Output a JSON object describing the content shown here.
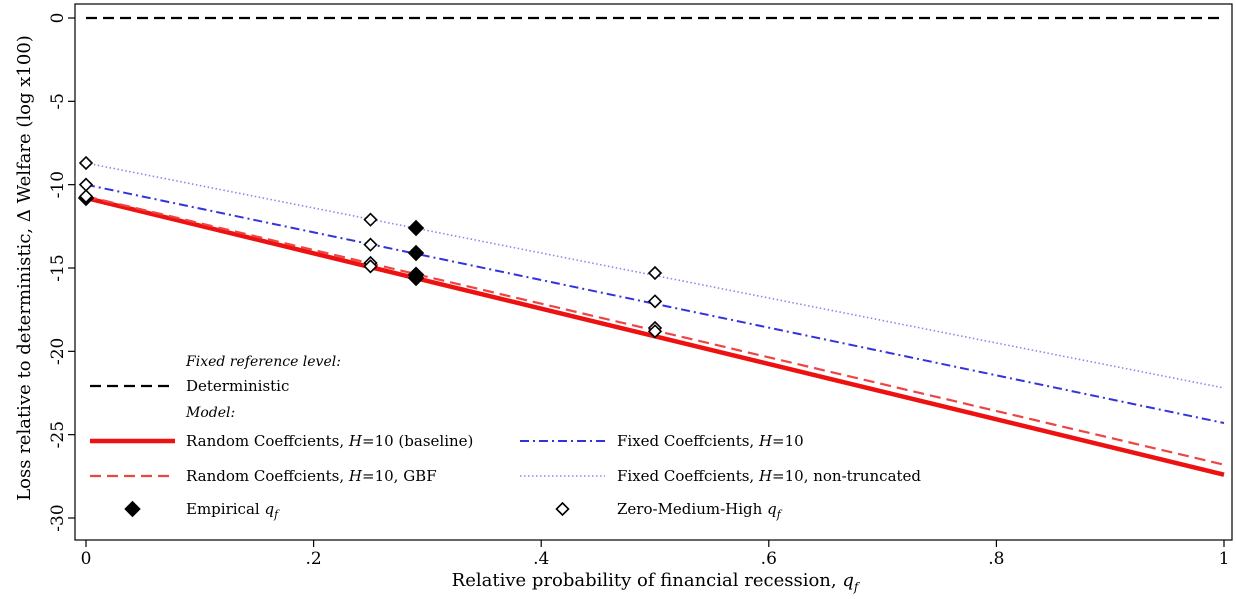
{
  "chart_data": {
    "type": "line",
    "title": "",
    "xlabel": "Relative probability of financial recession, ",
    "xlabel_var": "q",
    "xlabel_sub": "f",
    "ylabel": "Loss relative to deterministic, Δ Welfare (log x100)",
    "xlim": [
      0,
      1
    ],
    "ylim": [
      -30,
      0
    ],
    "xticks": [
      {
        "value": 0,
        "label": "0"
      },
      {
        "value": 0.2,
        "label": ".2"
      },
      {
        "value": 0.4,
        "label": ".4"
      },
      {
        "value": 0.6,
        "label": ".6"
      },
      {
        "value": 0.8,
        "label": ".8"
      },
      {
        "value": 1,
        "label": "1"
      }
    ],
    "yticks": [
      {
        "value": 0,
        "label": "0"
      },
      {
        "value": -5,
        "label": "-5"
      },
      {
        "value": -10,
        "label": "-10"
      },
      {
        "value": -15,
        "label": "-15"
      },
      {
        "value": -20,
        "label": "-20"
      },
      {
        "value": -25,
        "label": "-25"
      },
      {
        "value": -30,
        "label": "-30"
      }
    ],
    "grid": false,
    "series": [
      {
        "key": "det",
        "name": "Deterministic",
        "color": "#000000",
        "style": "dash-black",
        "x": [
          0,
          1
        ],
        "y": [
          0,
          0
        ]
      },
      {
        "key": "rc",
        "name": "Random Coeffcients, H=10 (baseline)",
        "color": "#ee1111",
        "style": "solid-thick",
        "x": [
          0,
          1
        ],
        "y": [
          -10.8,
          -27.4
        ]
      },
      {
        "key": "rcgbf",
        "name": "Random Coeffcients, H=10, GBF",
        "color": "#ee4444",
        "style": "dash-red",
        "x": [
          0,
          1
        ],
        "y": [
          -10.7,
          -26.8
        ]
      },
      {
        "key": "fc",
        "name": "Fixed Coeffcients, H=10",
        "color": "#3333dd",
        "style": "dashdot-blue",
        "x": [
          0,
          1
        ],
        "y": [
          -10.0,
          -24.3
        ]
      },
      {
        "key": "fcnt",
        "name": "Fixed Coeffcients, H=10, non-truncated",
        "color": "#8888ee",
        "style": "dot-blue",
        "x": [
          0,
          1
        ],
        "y": [
          -8.7,
          -22.2
        ]
      }
    ],
    "markers": [
      {
        "name": "Empirical q_f",
        "filled": true,
        "points": [
          [
            0.29,
            -12.6
          ],
          [
            0.29,
            -14.1
          ],
          [
            0.29,
            -15.4
          ],
          [
            0.29,
            -15.6
          ],
          [
            0.0,
            -10.8
          ]
        ]
      },
      {
        "name": "Zero-Medium-High q_f",
        "filled": false,
        "points": [
          [
            0,
            -8.7
          ],
          [
            0,
            -10.0
          ],
          [
            0,
            -10.7
          ],
          [
            0.25,
            -12.1
          ],
          [
            0.25,
            -13.6
          ],
          [
            0.25,
            -14.7
          ],
          [
            0.25,
            -14.9
          ],
          [
            0.5,
            -15.3
          ],
          [
            0.5,
            -17.0
          ],
          [
            0.5,
            -18.6
          ],
          [
            0.5,
            -18.8
          ]
        ]
      }
    ],
    "legend": {
      "placement": "bottom-left",
      "heading_fixed": "Fixed reference level:",
      "heading_model": "Model:",
      "items": [
        {
          "label": "Deterministic",
          "style": "dash-black"
        },
        {
          "label_pre": "Random Coeffcients, ",
          "label_var": "H",
          "label_post": "=10 (baseline)",
          "style": "solid-thick"
        },
        {
          "label_pre": "Fixed Coeffcients, ",
          "label_var": "H",
          "label_post": "=10",
          "style": "dashdot-blue"
        },
        {
          "label_pre": "Random Coeffcients, ",
          "label_var": "H",
          "label_post": "=10, GBF",
          "style": "dash-red"
        },
        {
          "label_pre": "Fixed Coeffcients, ",
          "label_var": "H",
          "label_post": "=10, non-truncated",
          "style": "dot-blue"
        },
        {
          "label_pre": "Empirical ",
          "label_var": "q",
          "label_sub": "f",
          "style": "marker-filled"
        },
        {
          "label_pre": "Zero-Medium-High ",
          "label_var": "q",
          "label_sub": "f",
          "style": "marker-open"
        }
      ]
    }
  }
}
